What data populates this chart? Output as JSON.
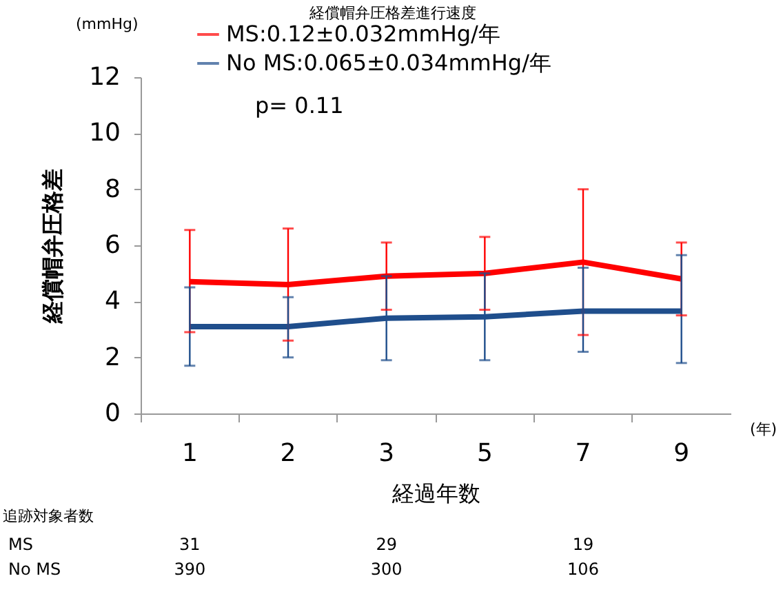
{
  "chart_data": {
    "type": "line",
    "title": "経償帽弁圧格差進行速度",
    "xlabel": "経過年数",
    "ylabel": "経償帽弁圧格差",
    "categories": [
      "1",
      "2",
      "3",
      "5",
      "7",
      "9"
    ],
    "ylim": [
      0,
      12
    ],
    "yticks": [
      0,
      2,
      4,
      6,
      8,
      10,
      12
    ],
    "grid": false,
    "legend": "top left",
    "marker": "none",
    "line_style": "solid",
    "series": [
      {
        "name": "MS:0.12±0.032mmHg/年",
        "color": "#ff0000",
        "values": [
          4.7,
          4.6,
          4.9,
          5.0,
          5.4,
          4.8
        ],
        "errors": [
          [
            2.9,
            6.55
          ],
          [
            2.6,
            6.6
          ],
          [
            3.7,
            6.1
          ],
          [
            3.7,
            6.3
          ],
          [
            2.8,
            8.0
          ],
          [
            3.5,
            6.1
          ]
        ]
      },
      {
        "name": "No MS:0.065±0.034mmHg/年",
        "color": "#1f4e8c",
        "values": [
          3.1,
          3.1,
          3.4,
          3.45,
          3.65,
          3.65
        ],
        "errors": [
          [
            1.7,
            4.5
          ],
          [
            2.0,
            4.15
          ],
          [
            1.9,
            4.9
          ],
          [
            1.9,
            5.0
          ],
          [
            2.2,
            5.2
          ],
          [
            1.8,
            5.65
          ]
        ]
      }
    ],
    "annotations": [
      "p= 0.11",
      "(mmHg)",
      "(年)",
      "追跡対象者数",
      "MS",
      "No MS",
      "31",
      "29",
      "19",
      "390",
      "300",
      "106"
    ]
  }
}
